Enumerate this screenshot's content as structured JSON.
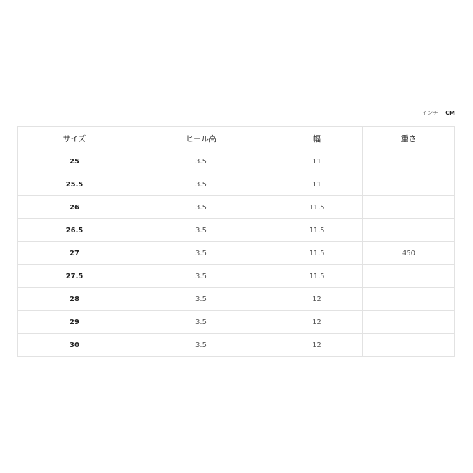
{
  "units": {
    "inch": "インチ",
    "cm": "CM",
    "selected": "CM"
  },
  "table": {
    "headers": [
      "サイズ",
      "ヒール高",
      "幅",
      "重さ"
    ],
    "rows": [
      [
        "25",
        "3.5",
        "11",
        ""
      ],
      [
        "25.5",
        "3.5",
        "11",
        ""
      ],
      [
        "26",
        "3.5",
        "11.5",
        ""
      ],
      [
        "26.5",
        "3.5",
        "11.5",
        ""
      ],
      [
        "27",
        "3.5",
        "11.5",
        "450"
      ],
      [
        "27.5",
        "3.5",
        "11.5",
        ""
      ],
      [
        "28",
        "3.5",
        "12",
        ""
      ],
      [
        "29",
        "3.5",
        "12",
        ""
      ],
      [
        "30",
        "3.5",
        "12",
        ""
      ]
    ]
  }
}
